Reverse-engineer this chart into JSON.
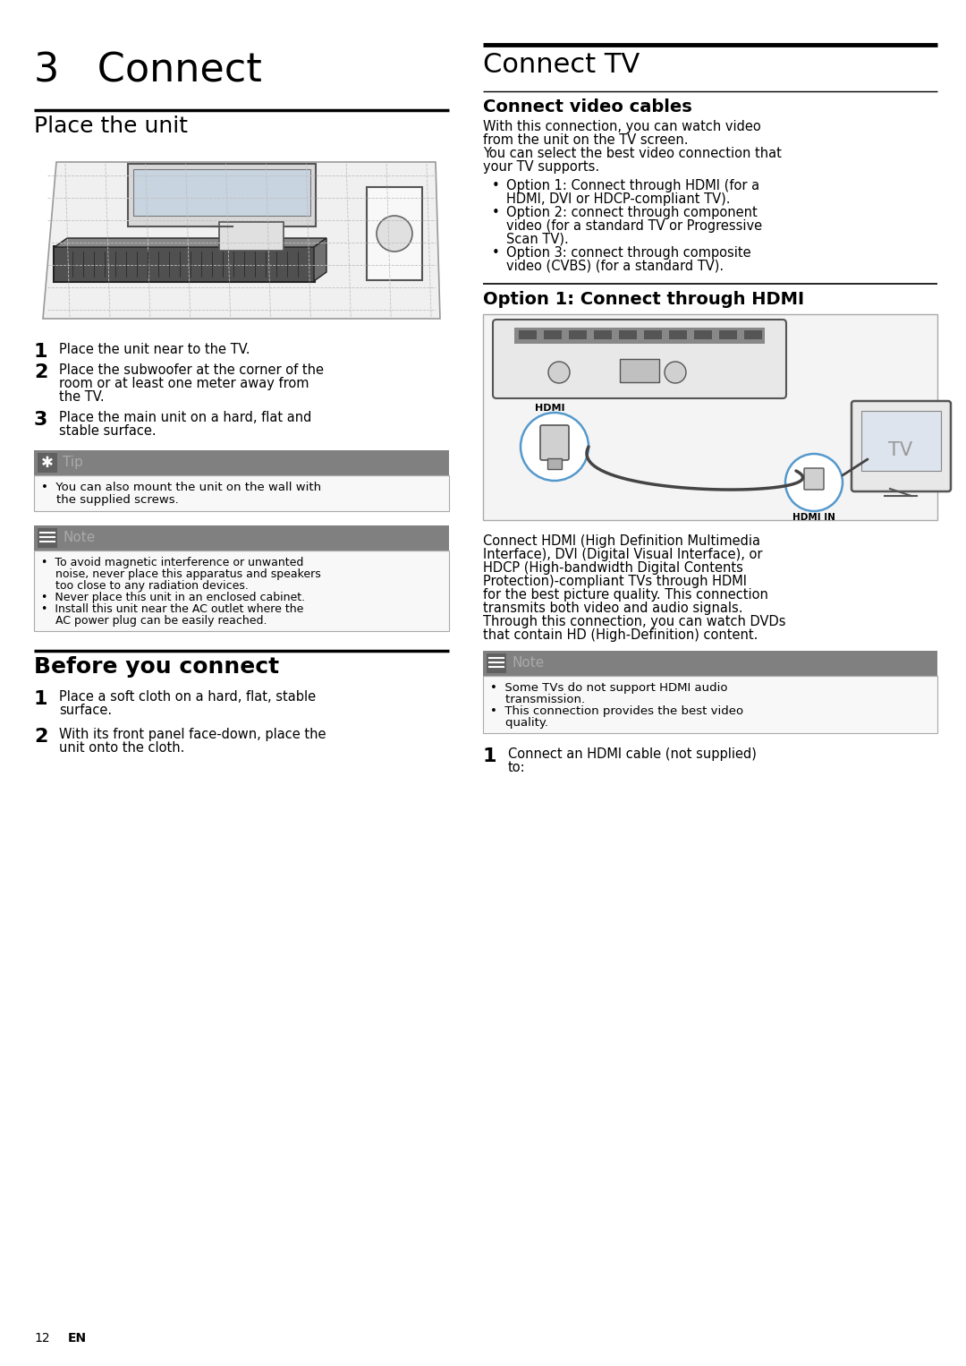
{
  "bg_color": "#ffffff",
  "text_color": "#000000",
  "page_width": 10.8,
  "page_height": 15.26,
  "chapter_title": "3   Connect",
  "left_col": {
    "section1_title": "Place the unit",
    "steps1": [
      [
        "1",
        "Place the unit near to the TV."
      ],
      [
        "2",
        "Place the subwoofer at the corner of the\nroom or at least one meter away from\nthe TV."
      ],
      [
        "3",
        "Place the main unit on a hard, flat and\nstable surface."
      ]
    ],
    "tip_title": "Tip",
    "tip_body": "You can also mount the unit on the wall with\nthe supplied screws.",
    "note1_title": "Note",
    "note1_bullets": [
      "To avoid magnetic interference or unwanted\nnoise, never place this apparatus and speakers\ntoo close to any radiation devices.",
      "Never place this unit in an enclosed cabinet.",
      "Install this unit near the AC outlet where the\nAC power plug can be easily reached."
    ],
    "section2_title": "Before you connect",
    "steps2": [
      [
        "1",
        "Place a soft cloth on a hard, flat, stable\nsurface."
      ],
      [
        "2",
        "With its front panel face-down, place the\nunit onto the cloth."
      ]
    ],
    "footer_num": "12",
    "footer_lang": "EN"
  },
  "right_col": {
    "section_title": "Connect TV",
    "subsection1_title": "Connect video cables",
    "intro_text": "With this connection, you can watch video\nfrom the unit on the TV screen.\nYou can select the best video connection that\nyour TV supports.",
    "bullet_points": [
      "Option 1: Connect through HDMI (for a\nHDMI, DVI or HDCP-compliant TV).",
      "Option 2: connect through component\nvideo (for a standard TV or Progressive\nScan TV).",
      "Option 3: connect through composite\nvideo (CVBS) (for a standard TV)."
    ],
    "subsection2_title": "Option 1: Connect through HDMI",
    "note2_title": "Note",
    "note2_bullets": [
      "Some TVs do not support HDMI audio\ntransmission.",
      "This connection provides the best video\nquality."
    ],
    "hdmi_desc": "Connect HDMI (High Definition Multimedia\nInterface), DVI (Digital Visual Interface), or\nHDCP (High-bandwidth Digital Contents\nProtection)-compliant TVs through HDMI\nfor the best picture quality. This connection\ntransmits both video and audio signals.\nThrough this connection, you can watch DVDs\nthat contain HD (High-Definition) content.",
    "step_final": [
      "1",
      "Connect an HDMI cable (not supplied)\nto:"
    ]
  },
  "colors": {
    "box_header_bg": "#808080",
    "box_body_border": "#aaaaaa",
    "box_header_text": "#ffffff",
    "tip_icon_bg": "#808080",
    "note_icon_bg": "#808080",
    "hdmi_circle_stroke": "#5599cc",
    "line_dark": "#000000",
    "line_thin": "#888888"
  }
}
